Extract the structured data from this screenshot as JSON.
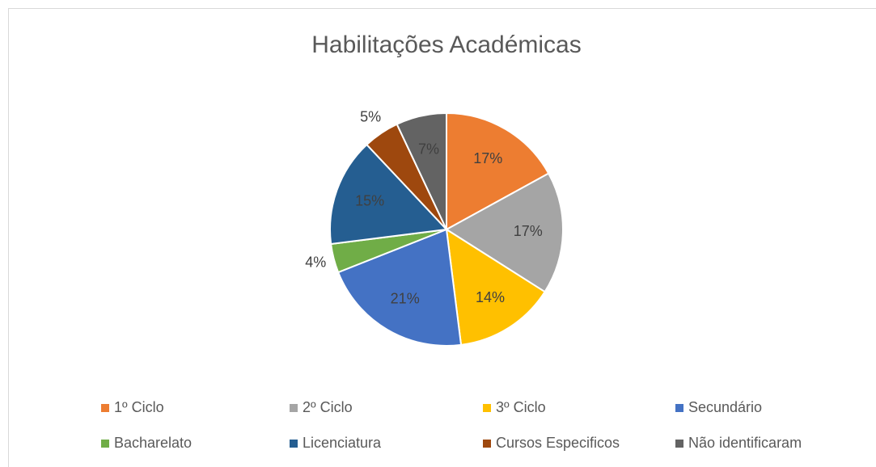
{
  "chart_data": {
    "type": "pie",
    "title": "Habilitações Académicas",
    "categories": [
      "1º Ciclo",
      "2º Ciclo",
      "3º Ciclo",
      "Secundário",
      "Bacharelato",
      "Licenciatura",
      "Cursos Especificos",
      "Não identificaram"
    ],
    "values": [
      17,
      17,
      14,
      21,
      4,
      15,
      5,
      7
    ],
    "value_labels": [
      "17%",
      "17%",
      "14%",
      "21%",
      "4%",
      "15%",
      "5%",
      "7%"
    ],
    "colors": [
      "#ed7d31",
      "#a5a5a5",
      "#ffc000",
      "#4472c4",
      "#70ad47",
      "#255e91",
      "#9e480e",
      "#636363"
    ],
    "legend": "bottom"
  }
}
